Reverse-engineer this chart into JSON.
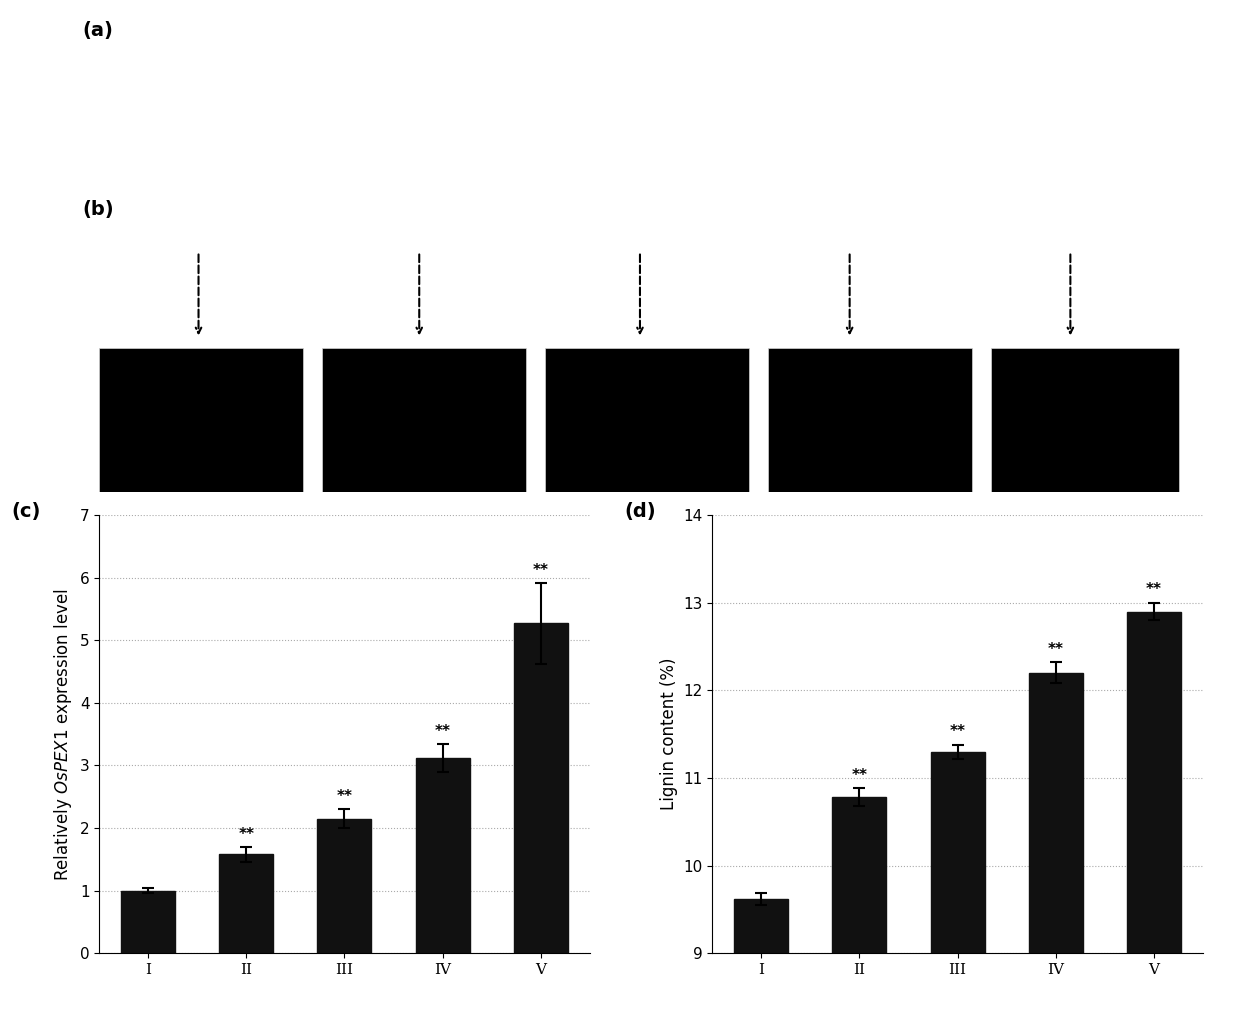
{
  "panel_a_label": "(a)",
  "panel_b_label": "(b)",
  "panel_c_label": "(c)",
  "panel_d_label": "(d)",
  "roman_numerals": [
    "I",
    "II",
    "III",
    "IV",
    "V"
  ],
  "bar_color": "#111111",
  "bg_color": "#000000",
  "panel_bg": "#ffffff",
  "c_values": [
    1.0,
    1.58,
    2.15,
    3.12,
    5.27
  ],
  "c_errors": [
    0.04,
    0.12,
    0.15,
    0.22,
    0.65
  ],
  "c_ylim": [
    0,
    7
  ],
  "c_yticks": [
    0,
    1,
    2,
    3,
    4,
    5,
    6,
    7
  ],
  "c_significance": [
    "",
    "**",
    "**",
    "**",
    "**"
  ],
  "d_values": [
    9.62,
    10.78,
    11.3,
    12.2,
    12.9
  ],
  "d_errors": [
    0.07,
    0.1,
    0.08,
    0.12,
    0.1
  ],
  "d_ylabel": "Lignin content (%)",
  "d_ylim": [
    9,
    14
  ],
  "d_yticks": [
    9,
    10,
    11,
    12,
    13,
    14
  ],
  "d_significance": [
    "",
    "**",
    "**",
    "**",
    "**"
  ],
  "grid_color": "#aaaaaa",
  "grid_linestyle": "dotted",
  "spine_color": "#000000",
  "tick_color": "#000000",
  "label_fontsize": 12,
  "tick_fontsize": 11,
  "sig_fontsize": 11,
  "panel_label_fontsize": 14
}
